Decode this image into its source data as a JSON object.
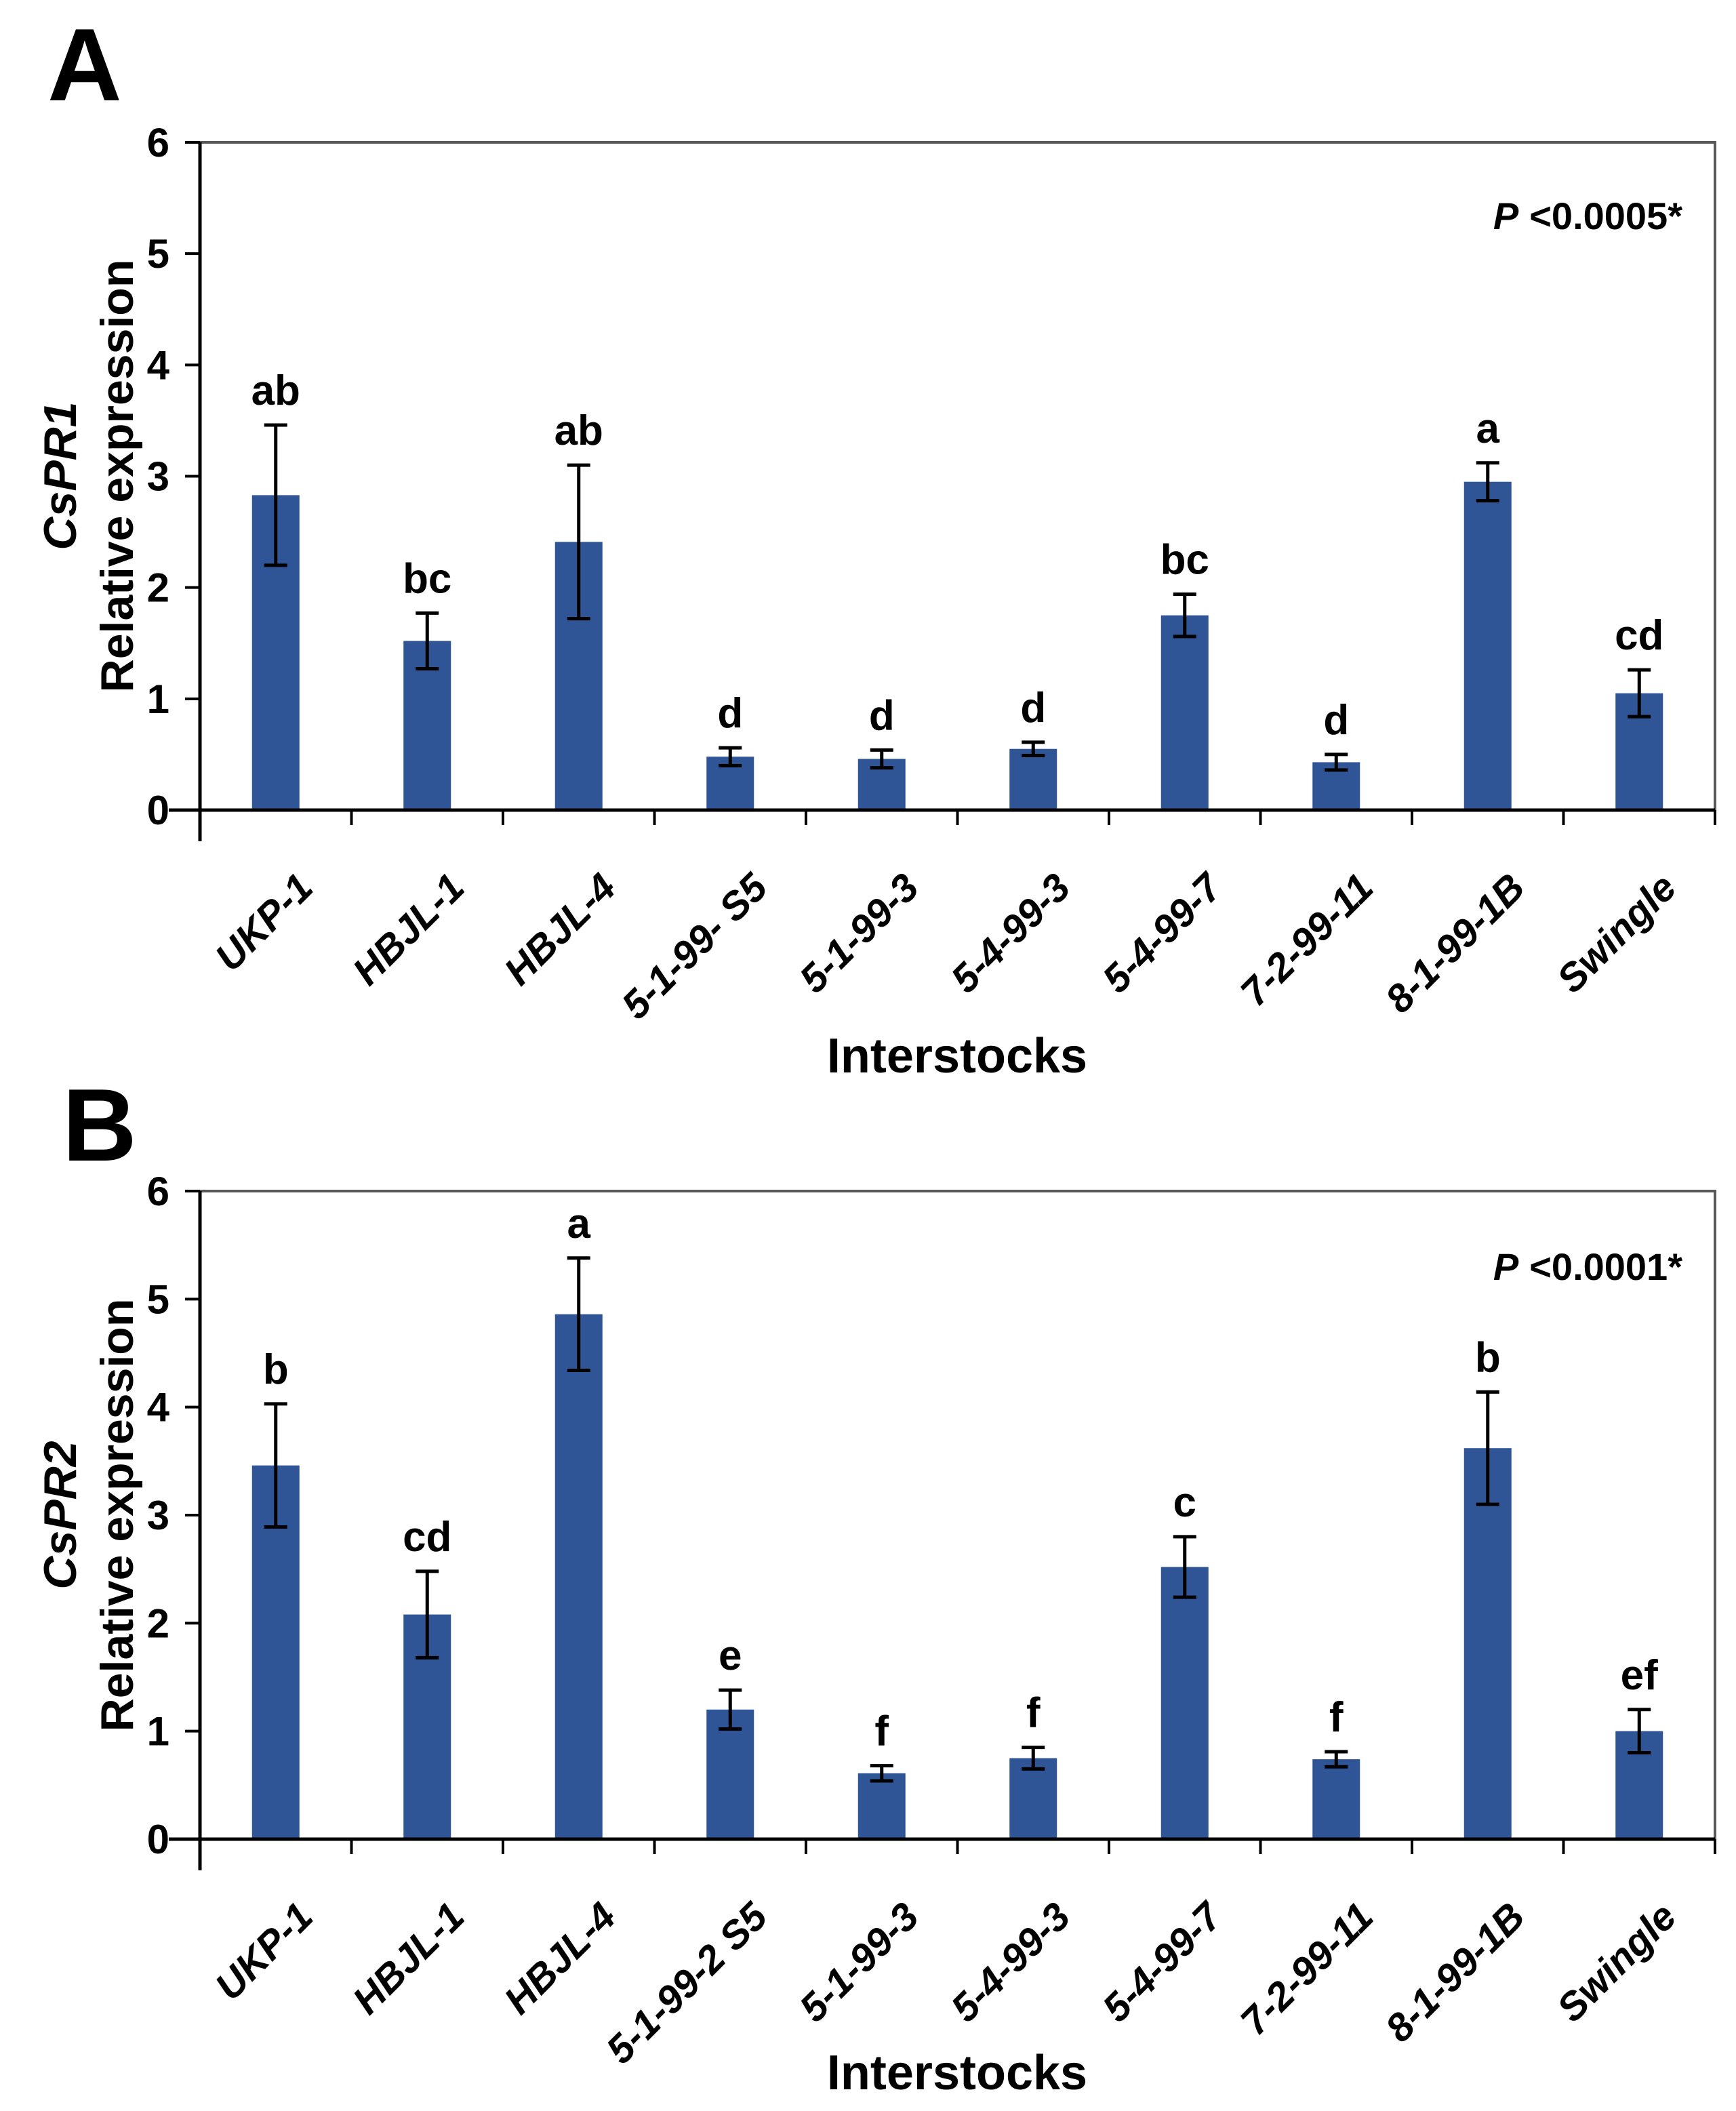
{
  "figure": {
    "panels": [
      {
        "panel_label": "A",
        "gene": "CsPR1",
        "y_axis_label": "Relative expression",
        "x_axis_label": "Interstocks",
        "p_italic": "P",
        "p_rest": "<0.0005*"
      },
      {
        "panel_label": "B",
        "gene": "CsPR2",
        "y_axis_label": "Relative expression",
        "x_axis_label": "Interstocks",
        "p_italic": "P",
        "p_rest": "<0.0001*"
      }
    ]
  },
  "style": {
    "bar_color": "#2F5597",
    "frame_color": "#595959",
    "axis_color": "#000000",
    "error_bar_color": "#000000",
    "text_color": "#000000",
    "background": "#FFFFFF"
  },
  "chart_data": [
    {
      "type": "bar",
      "panel": "A",
      "title": "CsPR1 relative expression in interstocks",
      "annotation": "P <0.0005*",
      "categories": [
        "UKP-1",
        "HBJL-1",
        "HBJL-4",
        "5-1-99- S5",
        "5-1-99-3",
        "5-4-99-3",
        "5-4-99-7",
        "7-2-99-11",
        "8-1-99-1B",
        "Swingle"
      ],
      "values": [
        2.83,
        1.52,
        2.41,
        0.48,
        0.46,
        0.55,
        1.75,
        0.43,
        2.95,
        1.05
      ],
      "errors": [
        0.63,
        0.25,
        0.69,
        0.08,
        0.08,
        0.06,
        0.19,
        0.07,
        0.17,
        0.21
      ],
      "sig_letters": [
        "ab",
        "bc",
        "ab",
        "d",
        "d",
        "d",
        "bc",
        "d",
        "a",
        "cd"
      ],
      "ylabel_line1": "CsPR1",
      "ylabel_line2": "Relative expression",
      "xlabel": "Interstocks",
      "ylim": [
        0,
        6
      ],
      "yticks": [
        0,
        1,
        2,
        3,
        4,
        5,
        6
      ],
      "bar_color": "#2F5597",
      "grid": false,
      "legend": false
    },
    {
      "type": "bar",
      "panel": "B",
      "title": "CsPR2 relative expression in interstocks",
      "annotation": "P <0.0001*",
      "categories": [
        "UKP-1",
        "HBJL-1",
        "HBJL-4",
        "5-1-99-2 S5",
        "5-1-99-3",
        "5-4-99-3",
        "5-4-99-7",
        "7-2-99-11",
        "8-1-99-1B",
        "Swingle"
      ],
      "values": [
        3.46,
        2.08,
        4.86,
        1.2,
        0.61,
        0.75,
        2.52,
        0.74,
        3.62,
        1.0
      ],
      "errors": [
        0.57,
        0.4,
        0.52,
        0.18,
        0.07,
        0.1,
        0.28,
        0.07,
        0.52,
        0.2
      ],
      "sig_letters": [
        "b",
        "cd",
        "a",
        "e",
        "f",
        "f",
        "c",
        "f",
        "b",
        "ef"
      ],
      "ylabel_line1": "CsPR2",
      "ylabel_line2": "Relative expression",
      "xlabel": "Interstocks",
      "ylim": [
        0,
        6
      ],
      "yticks": [
        0,
        1,
        2,
        3,
        4,
        5,
        6
      ],
      "bar_color": "#2F5597",
      "grid": false,
      "legend": false
    }
  ]
}
